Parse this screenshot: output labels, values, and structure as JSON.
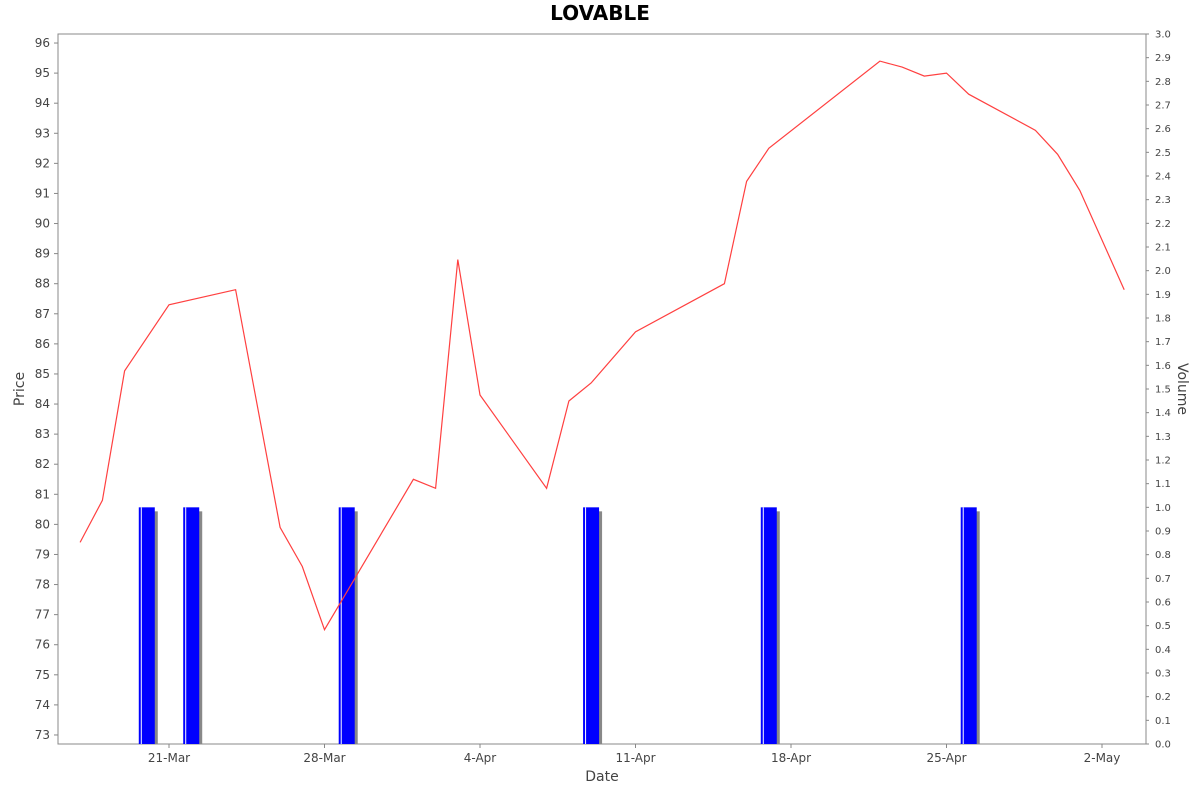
{
  "chart_data": {
    "type": "line",
    "title": "LOVABLE",
    "xlabel": "Date",
    "ylabel": "Price",
    "y2label": "Volume",
    "x_tick_labels": [
      "21-Mar",
      "28-Mar",
      "4-Apr",
      "11-Apr",
      "18-Apr",
      "25-Apr",
      "2-May"
    ],
    "x_tick_dates": [
      "2025-03-21",
      "2025-03-28",
      "2025-04-04",
      "2025-04-11",
      "2025-04-18",
      "2025-04-25",
      "2025-05-02"
    ],
    "ylim": [
      72.7,
      96.3
    ],
    "y_ticks": [
      73,
      74,
      75,
      76,
      77,
      78,
      79,
      80,
      81,
      82,
      83,
      84,
      85,
      86,
      87,
      88,
      89,
      90,
      91,
      92,
      93,
      94,
      95,
      96
    ],
    "y2lim": [
      0,
      3.0
    ],
    "y2_ticks": [
      "0.0",
      "0.1",
      "0.2",
      "0.3",
      "0.4",
      "0.5",
      "0.6",
      "0.7",
      "0.8",
      "0.9",
      "1.0",
      "1.1",
      "1.2",
      "1.3",
      "1.4",
      "1.5",
      "1.6",
      "1.7",
      "1.8",
      "1.9",
      "2.0",
      "2.1",
      "2.2",
      "2.3",
      "2.4",
      "2.5",
      "2.6",
      "2.7",
      "2.8",
      "2.9",
      "3.0"
    ],
    "grid": false,
    "series": [
      {
        "type": "line",
        "axis": "left",
        "color": "#ff4040",
        "points": [
          {
            "date": "2025-03-17",
            "value": 79.4
          },
          {
            "date": "2025-03-18",
            "value": 80.8
          },
          {
            "date": "2025-03-19",
            "value": 85.1
          },
          {
            "date": "2025-03-21",
            "value": 87.3
          },
          {
            "date": "2025-03-24",
            "value": 87.8
          },
          {
            "date": "2025-03-26",
            "value": 79.9
          },
          {
            "date": "2025-03-27",
            "value": 78.6
          },
          {
            "date": "2025-03-28",
            "value": 76.5
          },
          {
            "date": "2025-04-01",
            "value": 81.5
          },
          {
            "date": "2025-04-02",
            "value": 81.2
          },
          {
            "date": "2025-04-03",
            "value": 88.8
          },
          {
            "date": "2025-04-04",
            "value": 84.3
          },
          {
            "date": "2025-04-07",
            "value": 81.2
          },
          {
            "date": "2025-04-08",
            "value": 84.1
          },
          {
            "date": "2025-04-09",
            "value": 84.7
          },
          {
            "date": "2025-04-11",
            "value": 86.4
          },
          {
            "date": "2025-04-15",
            "value": 88.0
          },
          {
            "date": "2025-04-16",
            "value": 91.4
          },
          {
            "date": "2025-04-17",
            "value": 92.5
          },
          {
            "date": "2025-04-22",
            "value": 95.4
          },
          {
            "date": "2025-04-23",
            "value": 95.2
          },
          {
            "date": "2025-04-24",
            "value": 94.9
          },
          {
            "date": "2025-04-25",
            "value": 95.0
          },
          {
            "date": "2025-04-26",
            "value": 94.3
          },
          {
            "date": "2025-04-29",
            "value": 93.1
          },
          {
            "date": "2025-04-30",
            "value": 92.3
          },
          {
            "date": "2025-05-01",
            "value": 91.1
          },
          {
            "date": "2025-05-03",
            "value": 87.8
          }
        ]
      },
      {
        "type": "bar",
        "axis": "right",
        "color": "#0000ff",
        "shadow_color": "#888888",
        "points": [
          {
            "date": "2025-03-20",
            "value": 1.0
          },
          {
            "date": "2025-03-22",
            "value": 1.0
          },
          {
            "date": "2025-03-29",
            "value": 1.0
          },
          {
            "date": "2025-04-09",
            "value": 1.0
          },
          {
            "date": "2025-04-17",
            "value": 1.0
          },
          {
            "date": "2025-04-26",
            "value": 1.0
          }
        ]
      }
    ]
  }
}
